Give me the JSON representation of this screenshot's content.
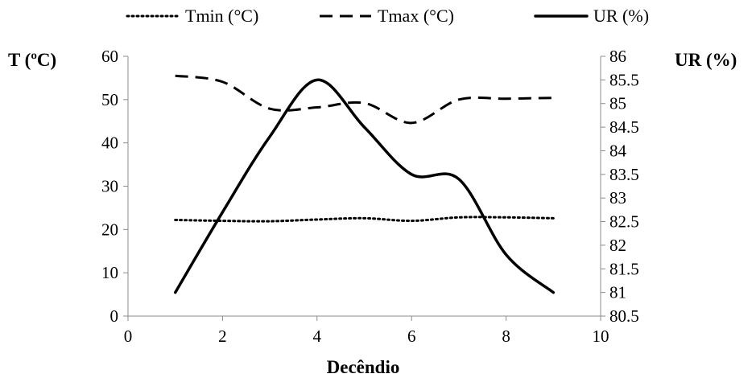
{
  "chart_data": {
    "type": "line",
    "title": "",
    "xlabel": "Decêndio",
    "ylabel": "T (ºC)",
    "y2label": "UR (%)",
    "xlim": [
      0,
      10
    ],
    "ylim": [
      0,
      60
    ],
    "y2lim": [
      80.5,
      86
    ],
    "x_ticks": [
      0,
      2,
      4,
      6,
      8,
      10
    ],
    "y_ticks": [
      0,
      10,
      20,
      30,
      40,
      50,
      60
    ],
    "y2_ticks": [
      80.5,
      81,
      81.5,
      82,
      82.5,
      83,
      83.5,
      84,
      84.5,
      85,
      85.5,
      86
    ],
    "x_tick_labels": [
      "0",
      "2",
      "4",
      "6",
      "8",
      "10"
    ],
    "y_tick_labels": [
      "0",
      "10",
      "20",
      "30",
      "40",
      "50",
      "60"
    ],
    "y2_tick_labels": [
      "80.5",
      "81",
      "81.5",
      "82",
      "82.5",
      "83",
      "83.5",
      "84",
      "84.5",
      "85",
      "85.5",
      "86"
    ],
    "grid": false,
    "legend_position": "top",
    "x": [
      1,
      2,
      3,
      4,
      5,
      6,
      7,
      8,
      9
    ],
    "series": [
      {
        "name": "Tmin (°C)",
        "axis": "left",
        "style": "dotted",
        "color": "#000000",
        "values": [
          22.2,
          22.0,
          21.9,
          22.3,
          22.6,
          22.0,
          22.8,
          22.8,
          22.6
        ]
      },
      {
        "name": "Tmax (°C)",
        "axis": "left",
        "style": "dashed",
        "color": "#000000",
        "values": [
          55.5,
          54.1,
          47.9,
          48.2,
          49.2,
          44.6,
          50.0,
          50.2,
          50.4
        ]
      },
      {
        "name": "UR (%)",
        "axis": "right",
        "style": "solid",
        "color": "#000000",
        "values": [
          81.0,
          82.7,
          84.3,
          85.5,
          84.5,
          83.5,
          83.4,
          81.8,
          81.0
        ]
      }
    ]
  }
}
